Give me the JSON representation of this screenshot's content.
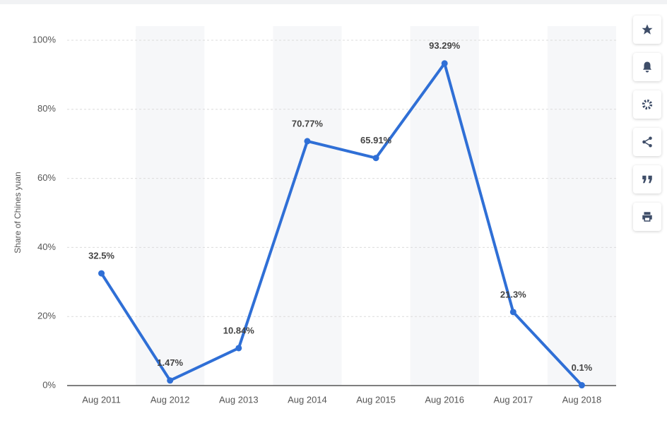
{
  "chart_data": {
    "type": "line",
    "y_label": "Share of Chines yuan",
    "categories": [
      "Aug 2011",
      "Aug 2012",
      "Aug 2013",
      "Aug 2014",
      "Aug 2015",
      "Aug 2016",
      "Aug 2017",
      "Aug 2018"
    ],
    "values": [
      32.5,
      1.47,
      10.84,
      70.77,
      65.91,
      93.29,
      21.3,
      0.1
    ],
    "value_labels": [
      "32.5%",
      "1.47%",
      "10.84%",
      "70.77%",
      "65.91%",
      "93.29%",
      "21.3%",
      "0.1%"
    ],
    "color": "#2f6fd6",
    "ylim": [
      0,
      100
    ],
    "yticks": [
      {
        "value": 0,
        "label": "0%"
      },
      {
        "value": 20,
        "label": "20%"
      },
      {
        "value": 40,
        "label": "40%"
      },
      {
        "value": 60,
        "label": "60%"
      },
      {
        "value": 80,
        "label": "80%"
      },
      {
        "value": 100,
        "label": "100%"
      }
    ],
    "grid": true
  }
}
